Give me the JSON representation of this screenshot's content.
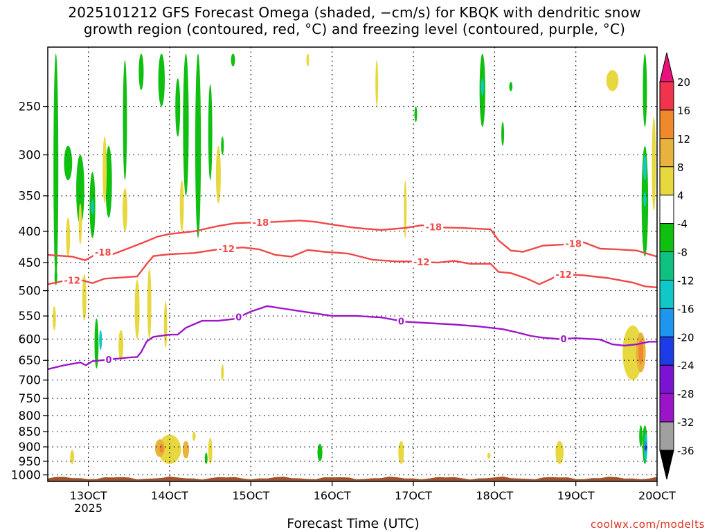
{
  "chart_data": {
    "type": "heatmap",
    "title_lines": [
      "2025101212 GFS Forecast Omega (shaded, −cm/s) for KBQK with dendritic snow",
      "growth region (contoured, red, °C) and freezing level (contoured, purple, °C)"
    ],
    "xlabel": "Forecast Time (UTC)",
    "ylabel": "",
    "x_ticks": [
      {
        "day": 13,
        "label": "13OCT",
        "sub": "2025"
      },
      {
        "day": 14,
        "label": "14OCT",
        "sub": ""
      },
      {
        "day": 15,
        "label": "15OCT",
        "sub": ""
      },
      {
        "day": 16,
        "label": "16OCT",
        "sub": ""
      },
      {
        "day": 17,
        "label": "17OCT",
        "sub": ""
      },
      {
        "day": 18,
        "label": "18OCT",
        "sub": ""
      },
      {
        "day": 19,
        "label": "19OCT",
        "sub": ""
      },
      {
        "day": 20,
        "label": "20OCT",
        "sub": ""
      }
    ],
    "xlim": [
      12.5,
      20.0
    ],
    "y_ticks": [
      250,
      300,
      350,
      400,
      450,
      500,
      550,
      600,
      650,
      700,
      750,
      800,
      850,
      900,
      950,
      1000
    ],
    "ylim": [
      1025,
      200
    ],
    "y_scale": "log-pressure",
    "colorbar": {
      "labels": [
        "20",
        "16",
        "12",
        "8",
        "4",
        "-4",
        "-8",
        "-12",
        "-16",
        "-20",
        "-24",
        "-28",
        "-32",
        "-36"
      ],
      "bins": [
        {
          "c": "#f0344c"
        },
        {
          "c": "#ee8a2c"
        },
        {
          "c": "#e8b23e"
        },
        {
          "c": "#e8d840"
        },
        {
          "c": "#ffffff"
        },
        {
          "c": "#10c010"
        },
        {
          "c": "#10c080"
        },
        {
          "c": "#10c8c8"
        },
        {
          "c": "#1e96f0"
        },
        {
          "c": "#1e3ce6"
        },
        {
          "c": "#7a14d2"
        },
        {
          "c": "#9a14c8"
        },
        {
          "c": "#a0a0a0"
        }
      ],
      "top_color": "#e8127a",
      "bottom_color": "#000000"
    },
    "series": [
      {
        "name": "-18",
        "color": "#f04848",
        "points": [
          [
            12.5,
            437
          ],
          [
            12.8,
            440
          ],
          [
            12.96,
            446
          ],
          [
            13.15,
            432
          ],
          [
            13.3,
            436
          ],
          [
            13.5,
            426
          ],
          [
            13.7,
            416
          ],
          [
            13.85,
            408
          ],
          [
            14.0,
            404
          ],
          [
            14.3,
            400
          ],
          [
            14.6,
            392
          ],
          [
            14.8,
            388
          ],
          [
            15.0,
            387
          ],
          [
            15.3,
            386
          ],
          [
            15.6,
            384
          ],
          [
            15.8,
            386
          ],
          [
            16.0,
            390
          ],
          [
            16.3,
            395
          ],
          [
            16.6,
            398
          ],
          [
            16.9,
            395
          ],
          [
            17.1,
            391
          ],
          [
            17.3,
            394
          ],
          [
            17.6,
            395
          ],
          [
            17.95,
            397
          ],
          [
            18.05,
            414
          ],
          [
            18.2,
            430
          ],
          [
            18.35,
            432
          ],
          [
            18.6,
            422
          ],
          [
            18.9,
            420
          ],
          [
            19.1,
            417
          ],
          [
            19.3,
            427
          ],
          [
            19.5,
            428
          ],
          [
            19.75,
            430
          ],
          [
            20.0,
            440
          ]
        ],
        "labels": [
          {
            "x": 15.12,
            "text": "-18"
          },
          {
            "x": 17.25,
            "text": "-18"
          },
          {
            "x": 18.97,
            "text": "-18"
          },
          {
            "x": 13.18,
            "text": "-18"
          }
        ]
      },
      {
        "name": "-12",
        "color": "#f04848",
        "points": [
          [
            12.5,
            488
          ],
          [
            12.7,
            482
          ],
          [
            12.9,
            480
          ],
          [
            13.05,
            486
          ],
          [
            13.2,
            478
          ],
          [
            13.4,
            476
          ],
          [
            13.6,
            474
          ],
          [
            13.72,
            452
          ],
          [
            13.8,
            439
          ],
          [
            14.0,
            436
          ],
          [
            14.3,
            434
          ],
          [
            14.6,
            428
          ],
          [
            14.9,
            425
          ],
          [
            15.1,
            428
          ],
          [
            15.3,
            437
          ],
          [
            15.5,
            440
          ],
          [
            15.7,
            429
          ],
          [
            15.9,
            432
          ],
          [
            16.2,
            435
          ],
          [
            16.5,
            445
          ],
          [
            16.8,
            448
          ],
          [
            17.0,
            448
          ],
          [
            17.3,
            450
          ],
          [
            17.5,
            447
          ],
          [
            17.7,
            452
          ],
          [
            17.95,
            452
          ],
          [
            18.05,
            466
          ],
          [
            18.2,
            468
          ],
          [
            18.4,
            478
          ],
          [
            18.55,
            488
          ],
          [
            18.7,
            478
          ],
          [
            18.8,
            470
          ],
          [
            19.1,
            472
          ],
          [
            19.4,
            477
          ],
          [
            19.7,
            485
          ],
          [
            19.85,
            492
          ],
          [
            20.0,
            494
          ]
        ],
        "labels": [
          {
            "x": 12.8,
            "text": "-12"
          },
          {
            "x": 14.7,
            "text": "-12"
          },
          {
            "x": 17.1,
            "text": "-12"
          },
          {
            "x": 18.85,
            "text": "-12"
          }
        ]
      },
      {
        "name": "0",
        "color": "#9c16c8",
        "points": [
          [
            12.5,
            672
          ],
          [
            12.7,
            662
          ],
          [
            12.9,
            655
          ],
          [
            12.97,
            662
          ],
          [
            13.05,
            652
          ],
          [
            13.25,
            648
          ],
          [
            13.5,
            643
          ],
          [
            13.6,
            642
          ],
          [
            13.65,
            630
          ],
          [
            13.72,
            605
          ],
          [
            13.8,
            595
          ],
          [
            14.0,
            590
          ],
          [
            14.1,
            590
          ],
          [
            14.2,
            575
          ],
          [
            14.4,
            560
          ],
          [
            14.6,
            560
          ],
          [
            14.8,
            556
          ],
          [
            15.0,
            541
          ],
          [
            15.2,
            530
          ],
          [
            15.4,
            535
          ],
          [
            15.6,
            540
          ],
          [
            15.8,
            545
          ],
          [
            16.0,
            550
          ],
          [
            16.3,
            550
          ],
          [
            16.6,
            553
          ],
          [
            16.9,
            562
          ],
          [
            17.2,
            565
          ],
          [
            17.5,
            568
          ],
          [
            17.8,
            572
          ],
          [
            18.1,
            578
          ],
          [
            18.3,
            586
          ],
          [
            18.45,
            593
          ],
          [
            18.6,
            597
          ],
          [
            18.8,
            600
          ],
          [
            19.0,
            598
          ],
          [
            19.3,
            601
          ],
          [
            19.45,
            612
          ],
          [
            19.6,
            615
          ],
          [
            19.75,
            612
          ],
          [
            19.9,
            606
          ],
          [
            20.0,
            606
          ]
        ],
        "labels": [
          {
            "x": 14.85,
            "text": "0"
          },
          {
            "x": 16.85,
            "text": "0"
          },
          {
            "x": 18.85,
            "text": "0"
          },
          {
            "x": 13.25,
            "text": "0"
          }
        ]
      }
    ],
    "blobs": [
      {
        "x": 12.6,
        "p1": 205,
        "p2": 480,
        "w": 0.06,
        "c": "#10c010"
      },
      {
        "x": 12.75,
        "p1": 290,
        "p2": 330,
        "w": 0.1,
        "c": "#10c010"
      },
      {
        "x": 12.9,
        "p1": 300,
        "p2": 390,
        "w": 0.1,
        "c": "#10c010"
      },
      {
        "x": 13.05,
        "p1": 320,
        "p2": 410,
        "w": 0.07,
        "c": "#10c010"
      },
      {
        "x": 13.05,
        "p1": 355,
        "p2": 375,
        "w": 0.03,
        "c": "#10c8c8"
      },
      {
        "x": 13.25,
        "p1": 290,
        "p2": 380,
        "w": 0.08,
        "c": "#10c010"
      },
      {
        "x": 13.65,
        "p1": 205,
        "p2": 235,
        "w": 0.06,
        "c": "#10c010"
      },
      {
        "x": 13.45,
        "p1": 210,
        "p2": 330,
        "w": 0.05,
        "c": "#10c010"
      },
      {
        "x": 13.9,
        "p1": 205,
        "p2": 250,
        "w": 0.08,
        "c": "#10c010"
      },
      {
        "x": 14.1,
        "p1": 225,
        "p2": 280,
        "w": 0.06,
        "c": "#10c010"
      },
      {
        "x": 14.2,
        "p1": 205,
        "p2": 350,
        "w": 0.07,
        "c": "#10c010"
      },
      {
        "x": 14.35,
        "p1": 205,
        "p2": 410,
        "w": 0.07,
        "c": "#10c010"
      },
      {
        "x": 14.5,
        "p1": 230,
        "p2": 330,
        "w": 0.05,
        "c": "#10c010"
      },
      {
        "x": 14.65,
        "p1": 280,
        "p2": 300,
        "w": 0.03,
        "c": "#10c010"
      },
      {
        "x": 13.1,
        "p1": 555,
        "p2": 670,
        "w": 0.05,
        "c": "#10c010"
      },
      {
        "x": 13.15,
        "p1": 580,
        "p2": 625,
        "w": 0.03,
        "c": "#10c8c8"
      },
      {
        "x": 12.6,
        "p1": 460,
        "p2": 490,
        "w": 0.03,
        "c": "#10c010"
      },
      {
        "x": 14.45,
        "p1": 920,
        "p2": 960,
        "w": 0.02,
        "c": "#10c010"
      },
      {
        "x": 14.78,
        "p1": 205,
        "p2": 215,
        "w": 0.05,
        "c": "#10c010"
      },
      {
        "x": 15.85,
        "p1": 890,
        "p2": 950,
        "w": 0.06,
        "c": "#10c010"
      },
      {
        "x": 17.03,
        "p1": 250,
        "p2": 265,
        "w": 0.02,
        "c": "#10c010"
      },
      {
        "x": 17.85,
        "p1": 205,
        "p2": 270,
        "w": 0.07,
        "c": "#10c010"
      },
      {
        "x": 17.85,
        "p1": 225,
        "p2": 240,
        "w": 0.03,
        "c": "#10c8c8"
      },
      {
        "x": 18.1,
        "p1": 265,
        "p2": 290,
        "w": 0.03,
        "c": "#10c010"
      },
      {
        "x": 18.2,
        "p1": 228,
        "p2": 236,
        "w": 0.04,
        "c": "#10c010"
      },
      {
        "x": 19.85,
        "p1": 290,
        "p2": 440,
        "w": 0.08,
        "c": "#10c010"
      },
      {
        "x": 19.85,
        "p1": 300,
        "p2": 330,
        "w": 0.04,
        "c": "#10c8c8"
      },
      {
        "x": 19.85,
        "p1": 345,
        "p2": 365,
        "w": 0.03,
        "c": "#10c8c8"
      },
      {
        "x": 19.85,
        "p1": 205,
        "p2": 270,
        "w": 0.05,
        "c": "#10c010"
      },
      {
        "x": 19.96,
        "p1": 260,
        "p2": 370,
        "w": 0.05,
        "c": "#e8d840"
      },
      {
        "x": 19.85,
        "p1": 830,
        "p2": 960,
        "w": 0.06,
        "c": "#10c010"
      },
      {
        "x": 19.86,
        "p1": 855,
        "p2": 950,
        "w": 0.04,
        "c": "#10c8c8"
      },
      {
        "x": 19.86,
        "p1": 880,
        "p2": 920,
        "w": 0.03,
        "c": "#1e96f0"
      },
      {
        "x": 19.86,
        "p1": 895,
        "p2": 912,
        "w": 0.025,
        "c": "#1e3ce6"
      },
      {
        "x": 19.8,
        "p1": 830,
        "p2": 900,
        "w": 0.04,
        "c": "#10c010"
      },
      {
        "x": 12.58,
        "p1": 530,
        "p2": 580,
        "w": 0.04,
        "c": "#e8d840"
      },
      {
        "x": 12.75,
        "p1": 380,
        "p2": 440,
        "w": 0.05,
        "c": "#e8d840"
      },
      {
        "x": 12.95,
        "p1": 470,
        "p2": 560,
        "w": 0.05,
        "c": "#e8d840"
      },
      {
        "x": 12.9,
        "p1": 360,
        "p2": 420,
        "w": 0.04,
        "c": "#e8d840"
      },
      {
        "x": 13.2,
        "p1": 280,
        "p2": 360,
        "w": 0.05,
        "c": "#e8d840"
      },
      {
        "x": 13.45,
        "p1": 340,
        "p2": 400,
        "w": 0.06,
        "c": "#e8d840"
      },
      {
        "x": 13.6,
        "p1": 480,
        "p2": 600,
        "w": 0.06,
        "c": "#e8d840"
      },
      {
        "x": 13.75,
        "p1": 460,
        "p2": 600,
        "w": 0.05,
        "c": "#e8d840"
      },
      {
        "x": 13.95,
        "p1": 520,
        "p2": 620,
        "w": 0.04,
        "c": "#e8d840"
      },
      {
        "x": 14.6,
        "p1": 290,
        "p2": 360,
        "w": 0.06,
        "c": "#e8d840"
      },
      {
        "x": 14.15,
        "p1": 330,
        "p2": 400,
        "w": 0.05,
        "c": "#e8d840"
      },
      {
        "x": 12.8,
        "p1": 910,
        "p2": 960,
        "w": 0.05,
        "c": "#e8d840"
      },
      {
        "x": 13.4,
        "p1": 580,
        "p2": 650,
        "w": 0.06,
        "c": "#e8d840"
      },
      {
        "x": 14.0,
        "p1": 860,
        "p2": 960,
        "w": 0.28,
        "c": "#e8d840"
      },
      {
        "x": 13.88,
        "p1": 875,
        "p2": 935,
        "w": 0.12,
        "c": "#e8b23e"
      },
      {
        "x": 13.9,
        "p1": 890,
        "p2": 920,
        "w": 0.05,
        "c": "#ee8a2c"
      },
      {
        "x": 14.2,
        "p1": 880,
        "p2": 940,
        "w": 0.08,
        "c": "#e8b23e"
      },
      {
        "x": 14.5,
        "p1": 870,
        "p2": 960,
        "w": 0.05,
        "c": "#e8d840"
      },
      {
        "x": 14.3,
        "p1": 850,
        "p2": 880,
        "w": 0.04,
        "c": "#e8d840"
      },
      {
        "x": 14.65,
        "p1": 660,
        "p2": 700,
        "w": 0.02,
        "c": "#e8d840"
      },
      {
        "x": 15.7,
        "p1": 205,
        "p2": 215,
        "w": 0.02,
        "c": "#e8d840"
      },
      {
        "x": 16.55,
        "p1": 210,
        "p2": 250,
        "w": 0.03,
        "c": "#e8d840"
      },
      {
        "x": 16.9,
        "p1": 330,
        "p2": 410,
        "w": 0.03,
        "c": "#e8d840"
      },
      {
        "x": 16.85,
        "p1": 880,
        "p2": 960,
        "w": 0.07,
        "c": "#e8d840"
      },
      {
        "x": 17.93,
        "p1": 920,
        "p2": 940,
        "w": 0.04,
        "c": "#e8d840"
      },
      {
        "x": 18.8,
        "p1": 880,
        "p2": 960,
        "w": 0.1,
        "c": "#e8d840"
      },
      {
        "x": 19.45,
        "p1": 218,
        "p2": 236,
        "w": 0.15,
        "c": "#e8d840"
      },
      {
        "x": 19.7,
        "p1": 570,
        "p2": 700,
        "w": 0.25,
        "c": "#e8d840"
      },
      {
        "x": 19.8,
        "p1": 585,
        "p2": 680,
        "w": 0.12,
        "c": "#e8b23e"
      },
      {
        "x": 19.8,
        "p1": 600,
        "p2": 660,
        "w": 0.06,
        "c": "#ee8a2c"
      }
    ],
    "terrain_color": "#a0522d",
    "grid": true
  }
}
